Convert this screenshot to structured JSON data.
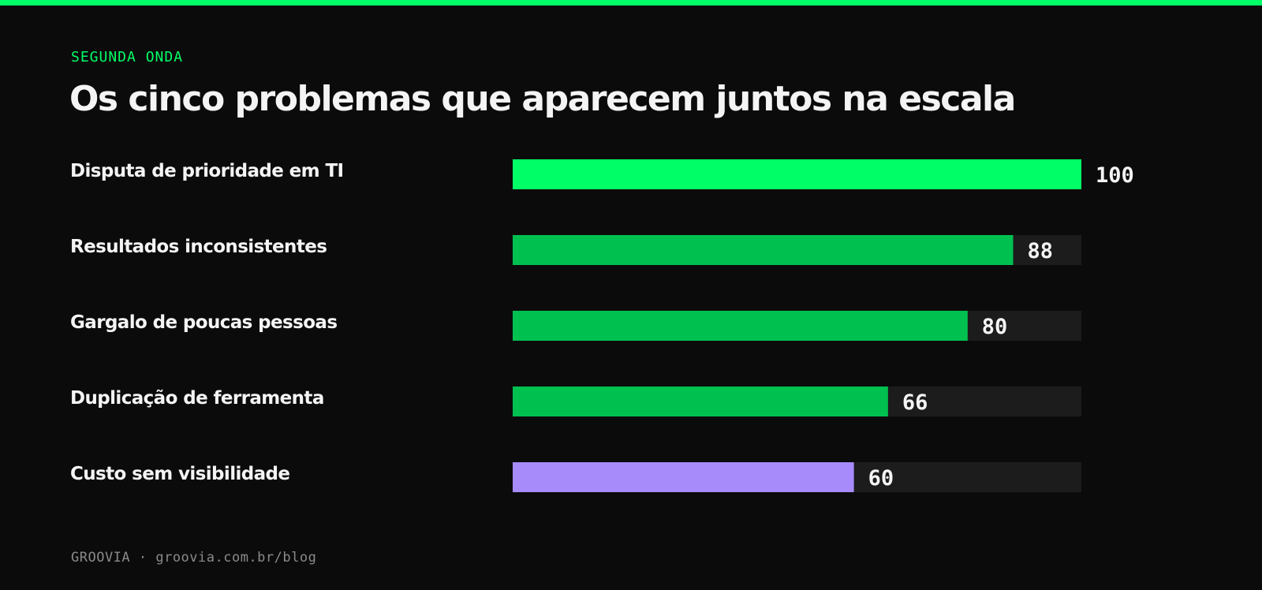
{
  "header": {
    "eyebrow": "SEGUNDA ONDA",
    "title": "Os cinco problemas que aparecem juntos na escala"
  },
  "chart_data": {
    "type": "bar",
    "orientation": "horizontal",
    "title": "Os cinco problemas que aparecem juntos na escala",
    "categories": [
      "Disputa de prioridade em TI",
      "Resultados inconsistentes",
      "Gargalo de poucas pessoas",
      "Duplicação de ferramenta",
      "Custo sem visibilidade"
    ],
    "values": [
      100,
      88,
      80,
      66,
      60
    ],
    "data_labels": [
      "100",
      "88",
      "80",
      "66",
      "60"
    ],
    "xlim": [
      0,
      100
    ],
    "grid": false,
    "legend": "none",
    "bar_colors": [
      "#00ff66",
      "#00c050",
      "#00c050",
      "#00c050",
      "#a78bfa"
    ],
    "track_color": "#1c1c1c"
  },
  "footer": {
    "text": "GROOVIA · groovia.com.br/blog"
  },
  "colors": {
    "background": "#0b0b0b",
    "accent": "#00ff66",
    "text": "#f4f4f4",
    "muted": "#8a8a8a"
  }
}
